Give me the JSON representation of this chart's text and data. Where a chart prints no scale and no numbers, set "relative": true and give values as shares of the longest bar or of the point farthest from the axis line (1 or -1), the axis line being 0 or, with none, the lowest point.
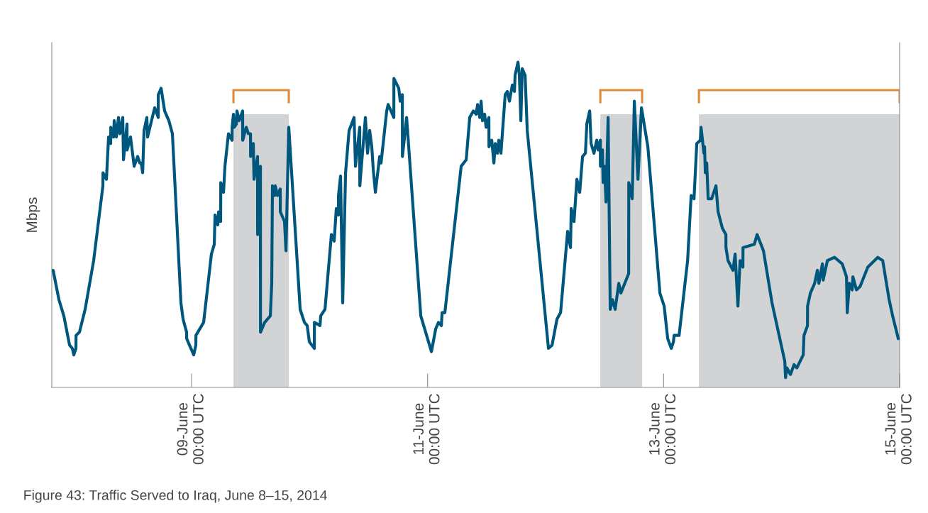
{
  "chart_data": {
    "type": "line",
    "relative": true,
    "ylabel": "Mbps",
    "annotations": [
      "Figure 43: Traffic Served to Iraq, June 8–15, 2014"
    ],
    "xlim": [
      "2014-06-07T19:34",
      "2014-06-15T00:00"
    ],
    "xticks": [
      {
        "value": "2014-06-09T00:00",
        "label": "09-June\n00:00 UTC"
      },
      {
        "value": "2014-06-11T00:00",
        "label": "11-June\n00:00 UTC"
      },
      {
        "value": "2014-06-13T00:00",
        "label": "13-June\n00:00 UTC"
      },
      {
        "value": "2014-06-15T00:00",
        "label": "15-June\n00:00 UTC"
      }
    ],
    "grid": false,
    "marker": "none",
    "line_style": "solid",
    "bands": [
      {
        "axis": "x",
        "from": "2014-06-09T08:31",
        "to": "2014-06-09T19:46",
        "color": "#d1d3d4"
      },
      {
        "axis": "x",
        "from": "2014-06-12T11:08",
        "to": "2014-06-12T19:38",
        "color": "#d1d3d4"
      },
      {
        "axis": "x",
        "from": "2014-06-13T07:11",
        "to": "2014-06-15T00:00",
        "color": "#d1d3d4"
      }
    ],
    "series": [
      {
        "color": "#00577d",
        "x": [
          "2014-06-07T19:51",
          "2014-06-07T21:01",
          "2014-06-07T22:01",
          "2014-06-07T23:11",
          "2014-06-07T23:45",
          "2014-06-08T00:03",
          "2014-06-08T00:29",
          "2014-06-08T00:30",
          "2014-06-08T01:12",
          "2014-06-08T02:21",
          "2014-06-08T04:05",
          "2014-06-08T05:58",
          "2014-06-08T05:59",
          "2014-06-08T06:41",
          "2014-06-08T07:07",
          "2014-06-08T07:33",
          "2014-06-08T07:34",
          "2014-06-08T08:08",
          "2014-06-08T08:16",
          "2014-06-08T08:42",
          "2014-06-08T09:08",
          "2014-06-08T09:25",
          "2014-06-08T10:00",
          "2014-06-08T10:09",
          "2014-06-08T10:52",
          "2014-06-08T10:53",
          "2014-06-08T11:35",
          "2014-06-08T12:19",
          "2014-06-08T13:02",
          "2014-06-08T13:28",
          "2014-06-08T13:45",
          "2014-06-08T14:03",
          "2014-06-08T14:20",
          "2014-06-08T14:54",
          "2014-06-08T15:03",
          "2014-06-08T16:30",
          "2014-06-08T17:13",
          "2014-06-08T17:14",
          "2014-06-08T17:48",
          "2014-06-08T18:31",
          "2014-06-08T19:23",
          "2014-06-08T20:06",
          "2014-06-08T21:50",
          "2014-06-08T22:16",
          "2014-06-08T22:59",
          "2014-06-08T23:00",
          "2014-06-08T23:34",
          "2014-06-09T00:26",
          "2014-06-09T00:52",
          "2014-06-09T00:53",
          "2014-06-09T02:27",
          "2014-06-09T04:02",
          "2014-06-09T04:37",
          "2014-06-09T04:46",
          "2014-06-09T05:20",
          "2014-06-09T05:29",
          "2014-06-09T05:55",
          "2014-06-09T05:56",
          "2014-06-09T06:30",
          "2014-06-09T06:47",
          "2014-06-09T07:30",
          "2014-06-09T08:14",
          "2014-06-09T08:15",
          "2014-06-09T08:31",
          "2014-06-09T08:40",
          "2014-06-09T09:06",
          "2014-06-09T09:14",
          "2014-06-09T09:40",
          "2014-06-09T10:23",
          "2014-06-09T10:24",
          "2014-06-09T11:07",
          "2014-06-09T11:33",
          "2014-06-09T11:59",
          "2014-06-09T12:00",
          "2014-06-09T12:33",
          "2014-06-09T12:42",
          "2014-06-09T13:25",
          "2014-06-09T13:26",
          "2014-06-09T14:00",
          "2014-06-09T14:01",
          "2014-06-09T14:52",
          "2014-06-09T16:01",
          "2014-06-09T16:18",
          "2014-06-09T16:27",
          "2014-06-09T16:53",
          "2014-06-09T17:02",
          "2014-06-09T17:28",
          "2014-06-09T18:02",
          "2014-06-09T18:03",
          "2014-06-09T18:54",
          "2014-06-09T19:12",
          "2014-06-09T19:46",
          "2014-06-09T22:05",
          "2014-06-09T22:57",
          "2014-06-09T23:31",
          "2014-06-09T23:57",
          "2014-06-10T00:58",
          "2014-06-10T00:59",
          "2014-06-10T02:07",
          "2014-06-10T02:16",
          "2014-06-10T03:08",
          "2014-06-10T04:26",
          "2014-06-10T05:00",
          "2014-06-10T05:26",
          "2014-06-10T05:52",
          "2014-06-10T05:53",
          "2014-06-10T06:18",
          "2014-06-10T06:44",
          "2014-06-10T07:19",
          "2014-06-10T08:02",
          "2014-06-10T09:03",
          "2014-06-10T09:20",
          "2014-06-10T10:12",
          "2014-06-10T10:13",
          "2014-06-10T11:21",
          "2014-06-10T11:47",
          "2014-06-10T12:13",
          "2014-06-10T12:39",
          "2014-06-10T12:57",
          "2014-06-10T13:23",
          "2014-06-10T14:15",
          "2014-06-10T14:32",
          "2014-06-10T15:41",
          "2014-06-10T15:59",
          "2014-06-10T17:08",
          "2014-06-10T17:09",
          "2014-06-10T18:08",
          "2014-06-10T18:26",
          "2014-06-10T18:52",
          "2014-06-10T18:53",
          "2014-06-10T19:44",
          "2014-06-10T22:37",
          "2014-06-11T00:47",
          "2014-06-11T01:39",
          "2014-06-11T02:13",
          "2014-06-11T02:48",
          "2014-06-11T02:57",
          "2014-06-11T03:31",
          "2014-06-11T06:50",
          "2014-06-11T07:51",
          "2014-06-11T08:34",
          "2014-06-11T09:18",
          "2014-06-11T09:52",
          "2014-06-11T10:10",
          "2014-06-11T10:36",
          "2014-06-11T10:53",
          "2014-06-11T11:10",
          "2014-06-11T11:36",
          "2014-06-11T11:54",
          "2014-06-11T12:28",
          "2014-06-11T12:29",
          "2014-06-11T13:03",
          "2014-06-11T13:29",
          "2014-06-11T13:46",
          "2014-06-11T14:12",
          "2014-06-11T14:29",
          "2014-06-11T14:55",
          "2014-06-11T15:47",
          "2014-06-11T16:13",
          "2014-06-11T16:39",
          "2014-06-11T17:14",
          "2014-06-11T17:40",
          "2014-06-11T17:48",
          "2014-06-11T18:23",
          "2014-06-11T18:40",
          "2014-06-11T18:58",
          "2014-06-11T19:15",
          "2014-06-11T19:50",
          "2014-06-11T20:16",
          "2014-06-12T00:35",
          "2014-06-12T01:19",
          "2014-06-12T02:19",
          "2014-06-12T03:03",
          "2014-06-12T04:29",
          "2014-06-12T05:04",
          "2014-06-12T05:13",
          "2014-06-12T05:47",
          "2014-06-12T06:22",
          "2014-06-12T06:56",
          "2014-06-12T07:31",
          "2014-06-12T08:06",
          "2014-06-12T08:23",
          "2014-06-12T08:58",
          "2014-06-12T09:15",
          "2014-06-12T09:50",
          "2014-06-12T10:24",
          "2014-06-12T10:42",
          "2014-06-12T11:08",
          "2014-06-12T11:09",
          "2014-06-12T11:34",
          "2014-06-12T11:42",
          "2014-06-12T12:00",
          "2014-06-12T12:17",
          "2014-06-12T12:43",
          "2014-06-12T13:09",
          "2014-06-12T13:35",
          "2014-06-12T14:09",
          "2014-06-12T14:53",
          "2014-06-12T15:19",
          "2014-06-12T16:54",
          "2014-06-12T16:55",
          "2014-06-12T17:37",
          "2014-06-12T18:03",
          "2014-06-12T18:47",
          "2014-06-12T19:30",
          "2014-06-12T20:48",
          "2014-06-12T23:15",
          "2014-06-13T00:07",
          "2014-06-13T00:50",
          "2014-06-13T01:34",
          "2014-06-13T02:00",
          "2014-06-13T02:08",
          "2014-06-13T03:09",
          "2014-06-13T04:53",
          "2014-06-13T05:36",
          "2014-06-13T06:11",
          "2014-06-13T06:45",
          "2014-06-13T07:29",
          "2014-06-13T07:37",
          "2014-06-13T08:12",
          "2014-06-13T08:20",
          "2014-06-13T08:29",
          "2014-06-13T08:46",
          "2014-06-13T09:04",
          "2014-06-13T09:47",
          "2014-06-13T10:39",
          "2014-06-13T11:05",
          "2014-06-13T11:57",
          "2014-06-13T12:40",
          "2014-06-13T12:41",
          "2014-06-13T13:06",
          "2014-06-13T14:07",
          "2014-06-13T14:33",
          "2014-06-13T15:07",
          "2014-06-13T15:33",
          "2014-06-13T16:08",
          "2014-06-13T16:09",
          "2014-06-13T18:27",
          "2014-06-13T19:01",
          "2014-06-13T20:19",
          "2014-06-13T22:03",
          "2014-06-14T00:39",
          "2014-06-14T00:48",
          "2014-06-14T01:05",
          "2014-06-14T01:48",
          "2014-06-14T02:32",
          "2014-06-14T03:06",
          "2014-06-14T04:24",
          "2014-06-14T04:33",
          "2014-06-14T05:16",
          "2014-06-14T05:17",
          "2014-06-14T05:51",
          "2014-06-14T06:43",
          "2014-06-14T07:17",
          "2014-06-14T07:35",
          "2014-06-14T08:18",
          "2014-06-14T08:27",
          "2014-06-14T09:19",
          "2014-06-14T10:45",
          "2014-06-14T12:20",
          "2014-06-14T13:12",
          "2014-06-14T13:21",
          "2014-06-14T13:47",
          "2014-06-14T14:22",
          "2014-06-14T14:30",
          "2014-06-14T15:14",
          "2014-06-14T15:57",
          "2014-06-14T17:32",
          "2014-06-14T19:33",
          "2014-06-14T20:34",
          "2014-06-14T21:52",
          "2014-06-14T22:35",
          "2014-06-14T23:44"
        ],
        "values": [
          0.36,
          0.27,
          0.22,
          0.13,
          0.12,
          0.1,
          0.12,
          0.16,
          0.17,
          0.24,
          0.39,
          0.62,
          0.66,
          0.64,
          0.77,
          0.75,
          0.8,
          0.77,
          0.82,
          0.77,
          0.83,
          0.78,
          0.83,
          0.7,
          0.81,
          0.73,
          0.77,
          0.68,
          0.71,
          0.69,
          0.69,
          0.66,
          0.79,
          0.83,
          0.77,
          0.86,
          0.83,
          0.9,
          0.92,
          0.85,
          0.82,
          0.78,
          0.26,
          0.21,
          0.17,
          0.15,
          0.13,
          0.1,
          0.13,
          0.16,
          0.2,
          0.41,
          0.44,
          0.53,
          0.5,
          0.54,
          0.51,
          0.63,
          0.6,
          0.68,
          0.78,
          0.76,
          0.8,
          0.84,
          0.8,
          0.81,
          0.85,
          0.82,
          0.85,
          0.76,
          0.8,
          0.78,
          0.78,
          0.71,
          0.75,
          0.64,
          0.71,
          0.47,
          0.68,
          0.17,
          0.2,
          0.22,
          0.32,
          0.62,
          0.59,
          0.62,
          0.59,
          0.61,
          0.54,
          0.51,
          0.42,
          0.8,
          0.24,
          0.2,
          0.19,
          0.14,
          0.12,
          0.2,
          0.19,
          0.22,
          0.24,
          0.47,
          0.45,
          0.55,
          0.53,
          0.59,
          0.65,
          0.26,
          0.66,
          0.79,
          0.83,
          0.68,
          0.8,
          0.62,
          0.83,
          0.72,
          0.79,
          0.74,
          0.67,
          0.6,
          0.71,
          0.69,
          0.85,
          0.87,
          0.83,
          0.95,
          0.92,
          0.88,
          0.9,
          0.71,
          0.83,
          0.22,
          0.11,
          0.18,
          0.2,
          0.19,
          0.23,
          0.23,
          0.68,
          0.7,
          0.83,
          0.85,
          0.84,
          0.87,
          0.83,
          0.88,
          0.82,
          0.84,
          0.8,
          0.83,
          0.74,
          0.76,
          0.69,
          0.75,
          0.72,
          0.76,
          0.72,
          0.9,
          0.91,
          0.88,
          0.93,
          0.91,
          0.96,
          1.0,
          0.96,
          0.82,
          0.98,
          0.96,
          0.79,
          0.12,
          0.13,
          0.21,
          0.23,
          0.48,
          0.43,
          0.55,
          0.51,
          0.64,
          0.6,
          0.71,
          0.72,
          0.81,
          0.85,
          0.75,
          0.72,
          0.76,
          0.73,
          0.76,
          0.68,
          0.73,
          0.63,
          0.68,
          0.57,
          0.83,
          0.24,
          0.27,
          0.24,
          0.32,
          0.29,
          0.35,
          0.63,
          0.58,
          0.88,
          0.64,
          0.86,
          0.74,
          0.29,
          0.25,
          0.15,
          0.12,
          0.14,
          0.16,
          0.16,
          0.39,
          0.59,
          0.58,
          0.75,
          0.76,
          0.8,
          0.72,
          0.74,
          0.66,
          0.69,
          0.58,
          0.58,
          0.62,
          0.54,
          0.49,
          0.47,
          0.43,
          0.39,
          0.36,
          0.41,
          0.25,
          0.39,
          0.37,
          0.43,
          0.44,
          0.47,
          0.42,
          0.26,
          0.08,
          0.03,
          0.06,
          0.04,
          0.07,
          0.06,
          0.1,
          0.16,
          0.19,
          0.25,
          0.29,
          0.32,
          0.36,
          0.32,
          0.38,
          0.33,
          0.39,
          0.4,
          0.38,
          0.34,
          0.23,
          0.32,
          0.3,
          0.34,
          0.3,
          0.31,
          0.37,
          0.4,
          0.39,
          0.27,
          0.22,
          0.15
        ]
      }
    ]
  }
}
